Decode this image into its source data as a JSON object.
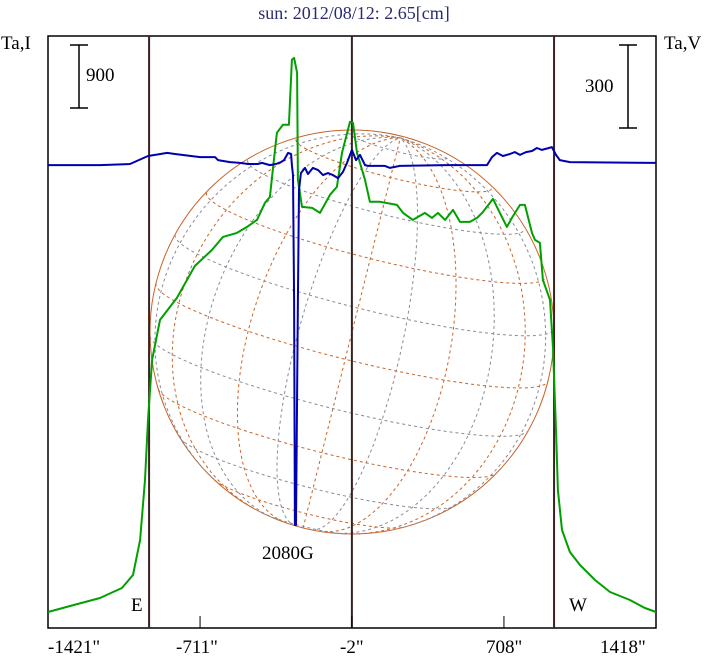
{
  "chart_data": {
    "type": "line",
    "title": "sun: 2012/08/12: 2.65[cm]",
    "ylabel_left": "Ta,I",
    "ylabel_right": "Ta,V",
    "xlim": [
      -1421,
      1418
    ],
    "x_tick_labels": [
      "-1421\"",
      "-711\"",
      "-2\"",
      "708\"",
      "1418\""
    ],
    "x_ticks": [
      -1421,
      -711,
      -2,
      708,
      1418
    ],
    "scale_bar_left": "900",
    "scale_bar_right": "300",
    "limb_markers": {
      "east": -949,
      "center": -2,
      "west": 942
    },
    "limb_labels": {
      "east": "E",
      "west": "W"
    },
    "annotation": "2080G",
    "series": [
      {
        "name": "Ta,I",
        "axis": "left",
        "color": "#00a000",
        "points": [
          [
            -1421,
            229
          ],
          [
            -1318,
            314
          ],
          [
            -1178,
            429
          ],
          [
            -1076,
            572
          ],
          [
            -1024,
            757
          ],
          [
            -991,
            1257
          ],
          [
            -968,
            2114
          ],
          [
            -954,
            2972
          ],
          [
            -935,
            3830
          ],
          [
            -898,
            4401
          ],
          [
            -819,
            4716
          ],
          [
            -735,
            5173
          ],
          [
            -655,
            5402
          ],
          [
            -604,
            5587
          ],
          [
            -539,
            5645
          ],
          [
            -492,
            5730
          ],
          [
            -445,
            5830
          ],
          [
            -408,
            6073
          ],
          [
            -385,
            6159
          ],
          [
            -361,
            6831
          ],
          [
            -352,
            7074
          ],
          [
            -324,
            7188
          ],
          [
            -296,
            7188
          ],
          [
            -282,
            8117
          ],
          [
            -272,
            8145
          ],
          [
            -258,
            7931
          ],
          [
            -254,
            6402
          ],
          [
            -235,
            6016
          ],
          [
            -188,
            6002
          ],
          [
            -151,
            5930
          ],
          [
            -104,
            6188
          ],
          [
            -72,
            6302
          ],
          [
            -48,
            6788
          ],
          [
            -11,
            7231
          ],
          [
            3,
            7216
          ],
          [
            22,
            6788
          ],
          [
            59,
            6402
          ],
          [
            82,
            6088
          ],
          [
            129,
            6088
          ],
          [
            208,
            6045
          ],
          [
            237,
            5930
          ],
          [
            283,
            5830
          ],
          [
            339,
            5930
          ],
          [
            372,
            5859
          ],
          [
            400,
            5930
          ],
          [
            433,
            5830
          ],
          [
            470,
            5973
          ],
          [
            503,
            5802
          ],
          [
            549,
            5802
          ],
          [
            582,
            5859
          ],
          [
            610,
            5945
          ],
          [
            657,
            6130
          ],
          [
            689,
            5930
          ],
          [
            722,
            5730
          ],
          [
            745,
            5859
          ],
          [
            783,
            6045
          ],
          [
            806,
            6045
          ],
          [
            839,
            5645
          ],
          [
            853,
            5545
          ],
          [
            876,
            5502
          ],
          [
            890,
            4973
          ],
          [
            923,
            4687
          ],
          [
            937,
            4000
          ],
          [
            951,
            2829
          ],
          [
            960,
            1972
          ],
          [
            979,
            1400
          ],
          [
            1016,
            1086
          ],
          [
            1063,
            900
          ],
          [
            1133,
            686
          ],
          [
            1203,
            514
          ],
          [
            1296,
            400
          ],
          [
            1366,
            286
          ],
          [
            1418,
            229
          ]
        ]
      },
      {
        "name": "Ta,V",
        "axis": "right",
        "color": "#0000b0",
        "points": [
          [
            -1421,
            -4
          ],
          [
            -1178,
            -4
          ],
          [
            -1038,
            0
          ],
          [
            -954,
            29
          ],
          [
            -921,
            33
          ],
          [
            -865,
            40
          ],
          [
            -828,
            36
          ],
          [
            -711,
            25
          ],
          [
            -641,
            25
          ],
          [
            -627,
            14
          ],
          [
            -571,
            7
          ],
          [
            -525,
            4
          ],
          [
            -487,
            0
          ],
          [
            -441,
            0
          ],
          [
            -422,
            4
          ],
          [
            -385,
            -4
          ],
          [
            -357,
            0
          ],
          [
            -333,
            7
          ],
          [
            -319,
            14
          ],
          [
            -300,
            40
          ],
          [
            -286,
            36
          ],
          [
            -282,
            -4
          ],
          [
            -277,
            -40
          ],
          [
            -272,
            -492
          ],
          [
            -268,
            -1305
          ],
          [
            -263,
            -1305
          ],
          [
            -254,
            -492
          ],
          [
            -249,
            -94
          ],
          [
            -240,
            -33
          ],
          [
            -221,
            -14
          ],
          [
            -207,
            -36
          ],
          [
            -184,
            -14
          ],
          [
            -160,
            -22
          ],
          [
            -137,
            -40
          ],
          [
            -114,
            -33
          ],
          [
            -90,
            -40
          ],
          [
            -67,
            -51
          ],
          [
            -44,
            -29
          ],
          [
            -25,
            4
          ],
          [
            -2,
            51
          ],
          [
            17,
            14
          ],
          [
            36,
            33
          ],
          [
            59,
            -4
          ],
          [
            73,
            -7
          ],
          [
            152,
            -7
          ],
          [
            176,
            -14
          ],
          [
            222,
            -7
          ],
          [
            433,
            -4
          ],
          [
            629,
            -4
          ],
          [
            652,
            25
          ],
          [
            675,
            40
          ],
          [
            703,
            29
          ],
          [
            736,
            36
          ],
          [
            759,
            43
          ],
          [
            783,
            33
          ],
          [
            811,
            43
          ],
          [
            839,
            47
          ],
          [
            862,
            58
          ],
          [
            885,
            51
          ],
          [
            918,
            58
          ],
          [
            932,
            61
          ],
          [
            951,
            33
          ],
          [
            969,
            14
          ],
          [
            1016,
            7
          ],
          [
            1418,
            4
          ]
        ]
      }
    ],
    "colors": {
      "frame": "#000000",
      "limb_lines": "#3a2020",
      "grid": "#c86428",
      "grid_alt": "#8a8a9a",
      "title": "#2b2b70"
    }
  }
}
